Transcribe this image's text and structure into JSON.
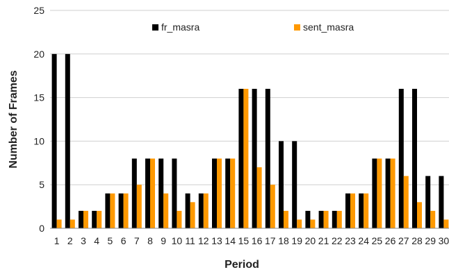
{
  "chart_data": {
    "type": "bar",
    "xlabel": "Period",
    "ylabel": "Number of Frames",
    "ylim": [
      0,
      25
    ],
    "yticks": [
      0,
      5,
      10,
      15,
      20,
      25
    ],
    "grid": "horizontal",
    "legend_position": "top",
    "categories": [
      "1",
      "2",
      "3",
      "4",
      "5",
      "6",
      "7",
      "8",
      "9",
      "10",
      "11",
      "12",
      "13",
      "14",
      "15",
      "16",
      "17",
      "18",
      "19",
      "20",
      "21",
      "22",
      "23",
      "24",
      "25",
      "26",
      "27",
      "28",
      "29",
      "30"
    ],
    "series": [
      {
        "name": "fr_masra",
        "color": "#000000",
        "values": [
          20,
          20,
          2,
          2,
          4,
          4,
          8,
          8,
          8,
          8,
          4,
          4,
          8,
          8,
          16,
          16,
          16,
          10,
          10,
          2,
          2,
          2,
          4,
          4,
          8,
          8,
          16,
          16,
          6,
          6
        ]
      },
      {
        "name": "sent_masra",
        "color": "#ff9900",
        "values": [
          1,
          1,
          2,
          2,
          4,
          4,
          5,
          8,
          4,
          2,
          3,
          4,
          8,
          8,
          16,
          7,
          5,
          2,
          1,
          1,
          2,
          2,
          4,
          4,
          8,
          8,
          6,
          3,
          2,
          1
        ]
      }
    ]
  }
}
